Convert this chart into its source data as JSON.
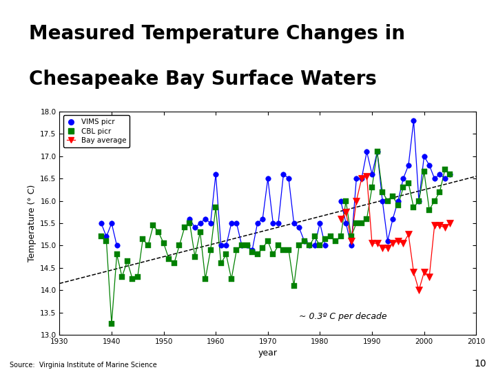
{
  "title_line1": "Measured Temperature Changes in",
  "title_line2": "Chesapeake Bay Surface Waters",
  "title_bg_color": "#aaaadd",
  "title_text_color": "#000000",
  "xlabel": "year",
  "ylabel": "Temperature (° C)",
  "xlim": [
    1930,
    2010
  ],
  "ylim": [
    13,
    18
  ],
  "yticks": [
    13,
    13.5,
    14,
    14.5,
    15,
    15.5,
    16,
    16.5,
    17,
    17.5,
    18
  ],
  "xticks": [
    1930,
    1940,
    1950,
    1960,
    1970,
    1980,
    1990,
    2000,
    2010
  ],
  "annotation": "~ 0.3º C per decade",
  "source_text": "Source:  Virginia Institute of Marine Science",
  "page_num": "10",
  "trend_x": [
    1930,
    2010
  ],
  "trend_y": [
    14.15,
    16.55
  ],
  "vims_years": [
    1938,
    1939,
    1940,
    1941,
    1955,
    1956,
    1957,
    1958,
    1959,
    1960,
    1961,
    1962,
    1963,
    1964,
    1965,
    1966,
    1967,
    1968,
    1969,
    1970,
    1971,
    1972,
    1973,
    1974,
    1975,
    1976,
    1977,
    1978,
    1979,
    1980,
    1981,
    1984,
    1985,
    1986,
    1987,
    1988,
    1989,
    1990,
    1991,
    1992,
    1993,
    1994,
    1995,
    1996,
    1997,
    1998,
    1999,
    2000,
    2001,
    2002,
    2003,
    2004,
    2005
  ],
  "vims_temps": [
    15.5,
    15.2,
    15.5,
    15.0,
    15.6,
    15.4,
    15.5,
    15.6,
    15.5,
    16.6,
    15.0,
    15.0,
    15.5,
    15.5,
    15.0,
    15.0,
    14.9,
    15.5,
    15.6,
    16.5,
    15.5,
    15.5,
    16.6,
    16.5,
    15.5,
    15.4,
    15.1,
    15.0,
    15.0,
    15.5,
    15.0,
    16.0,
    15.5,
    15.0,
    16.5,
    16.5,
    17.1,
    16.6,
    17.1,
    16.0,
    15.1,
    15.6,
    16.0,
    16.5,
    16.8,
    17.8,
    16.0,
    17.0,
    16.8,
    16.5,
    16.6,
    16.5,
    16.6
  ],
  "cbl_years": [
    1938,
    1939,
    1940,
    1941,
    1942,
    1943,
    1944,
    1945,
    1946,
    1947,
    1948,
    1949,
    1950,
    1951,
    1952,
    1953,
    1954,
    1955,
    1956,
    1957,
    1958,
    1959,
    1960,
    1961,
    1962,
    1963,
    1964,
    1965,
    1966,
    1967,
    1968,
    1969,
    1970,
    1971,
    1972,
    1973,
    1974,
    1975,
    1976,
    1977,
    1978,
    1979,
    1980,
    1981,
    1982,
    1983,
    1984,
    1985,
    1986,
    1987,
    1988,
    1989,
    1990,
    1991,
    1992,
    1993,
    1994,
    1995,
    1996,
    1997,
    1998,
    1999,
    2000,
    2001,
    2002,
    2003,
    2004,
    2005
  ],
  "cbl_temps": [
    15.2,
    15.1,
    13.25,
    14.8,
    14.3,
    14.65,
    14.25,
    14.3,
    15.15,
    15.0,
    15.45,
    15.3,
    15.05,
    14.7,
    14.6,
    15.0,
    15.4,
    15.5,
    14.75,
    15.3,
    14.25,
    14.9,
    15.85,
    14.6,
    14.8,
    14.25,
    14.9,
    15.0,
    15.0,
    14.85,
    14.8,
    14.95,
    15.1,
    14.8,
    15.0,
    14.9,
    14.9,
    14.1,
    15.0,
    15.1,
    15.0,
    15.2,
    15.0,
    15.15,
    15.2,
    15.1,
    15.2,
    16.0,
    15.2,
    15.5,
    15.5,
    15.6,
    16.3,
    17.1,
    16.2,
    16.0,
    16.1,
    15.9,
    16.3,
    16.4,
    15.85,
    16.0,
    16.65,
    15.8,
    16.0,
    16.2,
    16.7,
    16.6
  ],
  "bay_years": [
    1984,
    1985,
    1986,
    1987,
    1988,
    1989,
    1990,
    1991,
    1992,
    1993,
    1994,
    1995,
    1996,
    1997,
    1998,
    1999,
    2000,
    2001,
    2002,
    2003,
    2004,
    2005
  ],
  "bay_temps": [
    15.6,
    15.75,
    15.1,
    16.0,
    16.5,
    16.55,
    15.05,
    15.05,
    14.95,
    14.95,
    15.05,
    15.1,
    15.05,
    15.25,
    14.4,
    14.0,
    14.4,
    14.3,
    15.45,
    15.45,
    15.4,
    15.5
  ]
}
